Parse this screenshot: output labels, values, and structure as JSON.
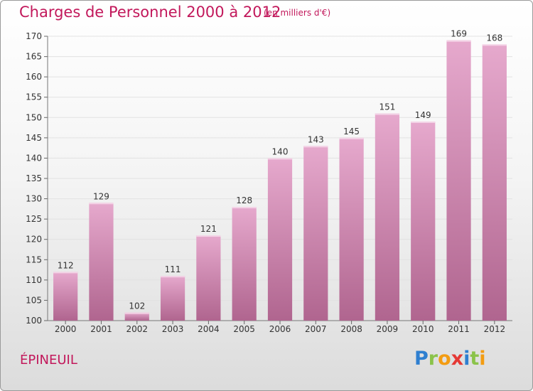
{
  "title": "Charges de Personnel 2000 à 2012",
  "subtitle": "(en milliers d'€)",
  "commune": "ÉPINEUIL",
  "logo_text": "Proxiti",
  "colors": {
    "bar": "#d98bb8",
    "text_accent": "#c2185b"
  },
  "chart_data": {
    "type": "bar",
    "categories": [
      "2000",
      "2001",
      "2002",
      "2003",
      "2004",
      "2005",
      "2006",
      "2007",
      "2008",
      "2009",
      "2010",
      "2011",
      "2012"
    ],
    "values": [
      112,
      129,
      102,
      111,
      121,
      128,
      140,
      143,
      145,
      151,
      149,
      169,
      168
    ],
    "ylim": [
      100,
      170
    ],
    "yticks": [
      100,
      105,
      110,
      115,
      120,
      125,
      130,
      135,
      140,
      145,
      150,
      155,
      160,
      165,
      170
    ],
    "grid": true,
    "legend": "none"
  }
}
